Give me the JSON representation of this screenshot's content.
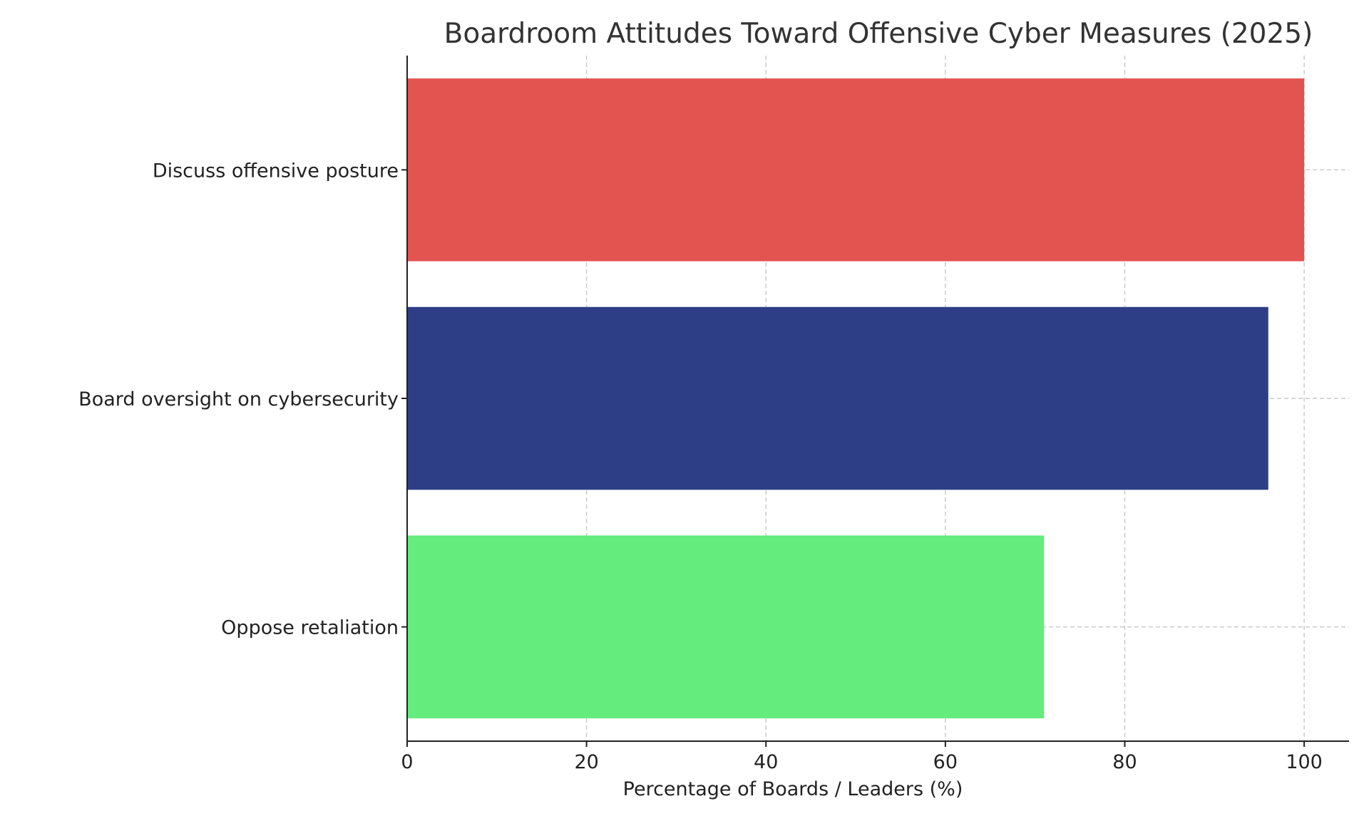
{
  "chart_data": {
    "type": "bar",
    "orientation": "horizontal",
    "title": "Boardroom Attitudes Toward Offensive Cyber Measures (2025)",
    "xlabel": "Percentage of Boards / Leaders (%)",
    "ylabel": "",
    "categories": [
      "Discuss offensive posture",
      "Board oversight on cybersecurity",
      "Oppose retaliation"
    ],
    "values": [
      100,
      96,
      71
    ],
    "colors": [
      "#e35450",
      "#2d3e87",
      "#64ec7c"
    ],
    "xlim": [
      0,
      105
    ],
    "xticks": [
      0,
      20,
      40,
      60,
      80,
      100
    ],
    "grid": true,
    "legend": "none"
  }
}
